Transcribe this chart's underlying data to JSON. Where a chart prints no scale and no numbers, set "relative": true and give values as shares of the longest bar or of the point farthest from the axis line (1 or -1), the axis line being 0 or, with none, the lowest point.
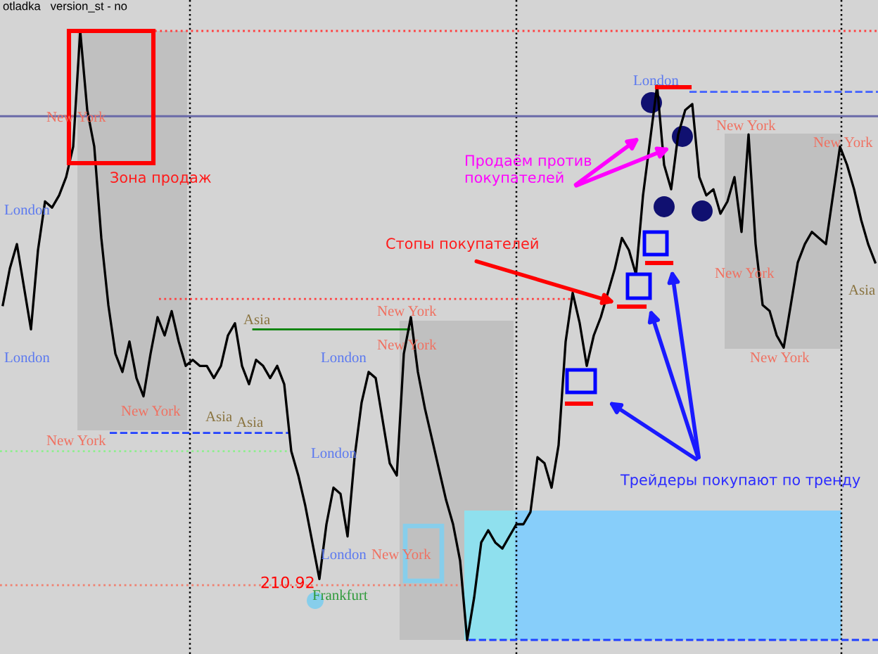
{
  "chart_data": {
    "type": "line",
    "title": "otladka   version_st - no",
    "relative": true,
    "tick_labels": false,
    "color": "#000000",
    "categories": [
      null,
      null,
      null,
      null,
      null,
      null,
      null,
      null,
      null,
      null,
      null,
      null,
      null,
      null,
      null,
      null,
      null,
      null,
      null,
      null,
      null,
      null,
      null,
      null,
      null,
      null,
      null,
      null,
      null,
      null,
      null,
      null,
      null,
      null,
      null,
      null,
      null,
      null,
      null,
      null,
      null,
      null,
      null,
      null,
      null,
      null,
      null,
      null,
      null,
      null,
      null,
      null,
      null,
      null,
      null,
      null,
      null,
      null,
      null,
      null,
      null,
      null,
      null,
      null,
      null,
      null,
      null,
      null,
      null,
      null,
      null,
      null,
      null,
      null,
      null,
      null,
      null,
      null,
      null,
      null,
      null,
      null,
      null,
      null,
      null,
      null,
      null,
      null,
      null,
      null,
      null,
      null,
      null,
      null,
      null,
      null,
      null,
      null,
      null,
      null,
      null,
      null,
      null,
      null,
      null,
      null,
      null,
      null,
      null,
      null,
      null,
      null,
      null,
      null,
      null,
      null,
      null,
      null,
      null,
      null,
      null,
      null,
      null,
      null,
      null
    ],
    "values": [
      0.55,
      0.61,
      0.65,
      0.58,
      0.51,
      0.64,
      0.72,
      0.71,
      0.73,
      0.76,
      0.81,
      1.0,
      0.87,
      0.81,
      0.66,
      0.55,
      0.47,
      0.44,
      0.49,
      0.43,
      0.4,
      0.47,
      0.53,
      0.5,
      0.54,
      0.49,
      0.45,
      0.46,
      0.45,
      0.45,
      0.43,
      0.45,
      0.5,
      0.52,
      0.45,
      0.42,
      0.46,
      0.45,
      0.43,
      0.45,
      0.42,
      0.31,
      0.27,
      0.22,
      0.16,
      0.1,
      0.19,
      0.25,
      0.24,
      0.17,
      0.3,
      0.39,
      0.44,
      0.43,
      0.36,
      0.29,
      0.27,
      0.47,
      0.53,
      0.44,
      0.38,
      0.33,
      0.28,
      0.23,
      0.19,
      0.13,
      0.0,
      0.07,
      0.16,
      0.18,
      0.16,
      0.15,
      0.17,
      0.19,
      0.19,
      0.21,
      0.3,
      0.29,
      0.25,
      0.32,
      0.49,
      0.57,
      0.52,
      0.45,
      0.5,
      0.53,
      0.57,
      0.61,
      0.66,
      0.64,
      0.6,
      0.73,
      0.82,
      0.91,
      0.78,
      0.74,
      0.83,
      0.87,
      0.88,
      0.76,
      0.73,
      0.74,
      0.7,
      0.72,
      0.76,
      0.67,
      0.83,
      0.65,
      0.55,
      0.54,
      0.5,
      0.48,
      0.55,
      0.62,
      0.65,
      0.67,
      0.66,
      0.65,
      0.73,
      0.81,
      0.78,
      0.74,
      0.69,
      0.65,
      0.62
    ],
    "ref_lines": [
      {
        "axis": "y",
        "value": 1.0,
        "color": "#ff4040",
        "line_style": "dotted"
      },
      {
        "axis": "y",
        "value": 0.86,
        "color": "#6a6aa8",
        "line_style": "solid"
      },
      {
        "axis": "y",
        "value": 0.9,
        "color": "#4060ff",
        "line_style": "dashed"
      },
      {
        "axis": "y",
        "value": 0.56,
        "color": "#ff4040",
        "line_style": "dotted"
      },
      {
        "axis": "y",
        "value": 0.51,
        "color": "#008000",
        "line_style": "solid"
      },
      {
        "axis": "y",
        "value": 0.34,
        "color": "#2040ff",
        "line_style": "dashed"
      },
      {
        "axis": "y",
        "value": 0.31,
        "color": "#90ee90",
        "line_style": "dotted"
      },
      {
        "axis": "y",
        "value": 0.09,
        "color": "#f08070",
        "line_style": "dotted"
      },
      {
        "axis": "y",
        "value": 0.0,
        "color": "#2040ff",
        "line_style": "dashed"
      }
    ],
    "annotations": [
      "Зона продаж",
      "Продаём против\nпокупателей",
      "Стопы покупателей",
      "Трейдеры покупают по тренду",
      "London",
      "New York",
      "London",
      "New York",
      "New York",
      "Asia",
      "Asia",
      "Asia",
      "New York",
      "New York",
      "London",
      "London",
      "London",
      "New York",
      "Frankfurt",
      "London",
      "New York",
      "New York",
      "New York",
      "New York",
      "Asia",
      "210.92"
    ]
  }
}
